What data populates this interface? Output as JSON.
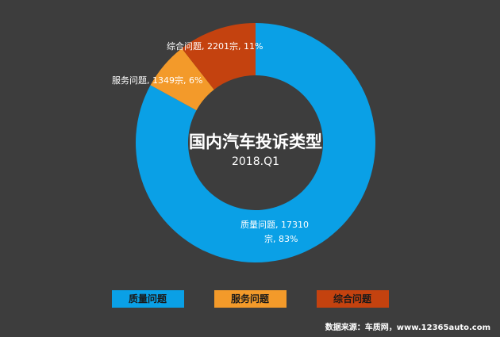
{
  "chart_data": {
    "type": "pie",
    "title": "国内汽车投诉类型",
    "subtitle": "2018.Q1",
    "series": [
      {
        "name": "质量问题",
        "value": 17310,
        "percent": 83,
        "color": "#0aa0e6",
        "label_line1": "质量问题, 17310",
        "label_line2": "宗, 83%"
      },
      {
        "name": "服务问题",
        "value": 1349,
        "percent": 6,
        "color": "#f39a2a",
        "label_line1": "服务问题, 1349宗, 6%"
      },
      {
        "name": "综合问题",
        "value": 2201,
        "percent": 11,
        "color": "#c4420f",
        "label_line1": "综合问题, 2201宗, 11%"
      }
    ]
  },
  "footer": {
    "source": "数据来源：车质网，www.12365auto.com"
  }
}
